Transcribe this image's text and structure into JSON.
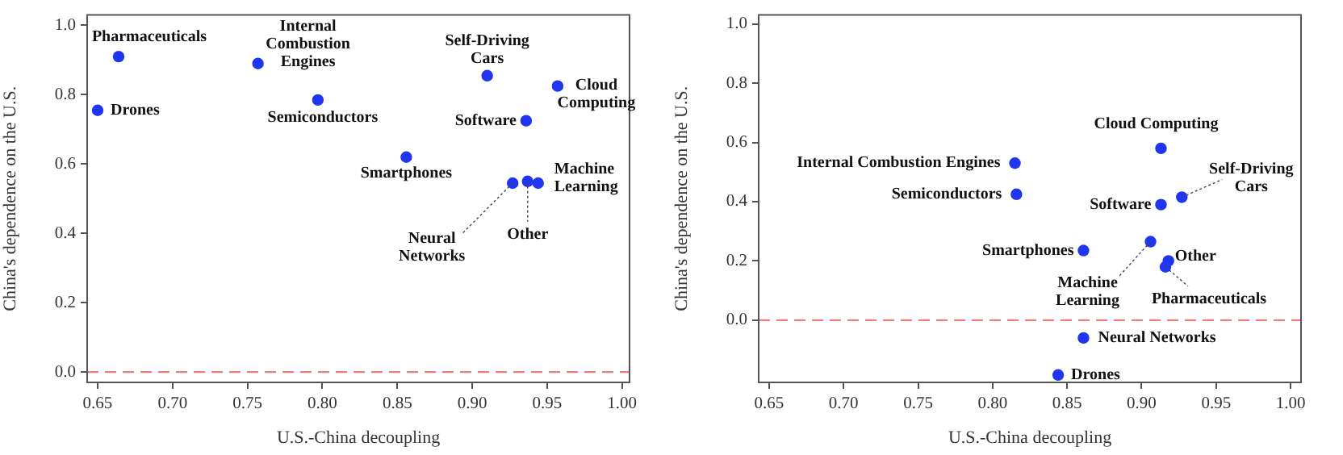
{
  "chart_data": [
    {
      "type": "scatter",
      "xlabel": "U.S.-China decoupling",
      "ylabel": "China's dependence on the U.S.",
      "xlim": [
        0.643,
        1.005
      ],
      "ylim": [
        -0.03,
        1.03
      ],
      "xticks": [
        {
          "value": 0.65,
          "label": "0.65"
        },
        {
          "value": 0.7,
          "label": "0.70"
        },
        {
          "value": 0.75,
          "label": "0.75"
        },
        {
          "value": 0.8,
          "label": "0.80"
        },
        {
          "value": 0.85,
          "label": "0.85"
        },
        {
          "value": 0.9,
          "label": "0.90"
        },
        {
          "value": 0.95,
          "label": "0.95"
        },
        {
          "value": 1.0,
          "label": "1.00"
        }
      ],
      "yticks": [
        {
          "value": 0,
          "label": "0.0"
        },
        {
          "value": 0.2,
          "label": "0.2"
        },
        {
          "value": 0.4,
          "label": "0.4"
        },
        {
          "value": 0.6,
          "label": "0.6"
        },
        {
          "value": 0.8,
          "label": "0.8"
        },
        {
          "value": 1.0,
          "label": "1.0"
        }
      ],
      "grid": false,
      "legend": false,
      "marker": "circle",
      "series": [
        {
          "color": "#1f35f0",
          "x": [
            0.664,
            0.65,
            0.757,
            0.797,
            0.856,
            0.91,
            0.957,
            0.936,
            0.927,
            0.937,
            0.944
          ],
          "values": [
            0.91,
            0.755,
            0.89,
            0.785,
            0.62,
            0.855,
            0.825,
            0.725,
            0.545,
            0.55,
            0.545
          ]
        }
      ],
      "annotations": [
        {
          "text": "Pharmaceuticals",
          "x": 0.664,
          "y": 0.91
        },
        {
          "text": "Drones",
          "x": 0.65,
          "y": 0.755
        },
        {
          "text": "Internal Combustion Engines",
          "x": 0.757,
          "y": 0.89
        },
        {
          "text": "Semiconductors",
          "x": 0.797,
          "y": 0.785
        },
        {
          "text": "Smartphones",
          "x": 0.856,
          "y": 0.62
        },
        {
          "text": "Self-Driving Cars",
          "x": 0.91,
          "y": 0.855
        },
        {
          "text": "Cloud Computing",
          "x": 0.957,
          "y": 0.825
        },
        {
          "text": "Software",
          "x": 0.936,
          "y": 0.725
        },
        {
          "text": "Neural Networks",
          "x": 0.927,
          "y": 0.545
        },
        {
          "text": "Other",
          "x": 0.937,
          "y": 0.55
        },
        {
          "text": "Machine Learning",
          "x": 0.944,
          "y": 0.545
        }
      ],
      "ref_lines": [
        {
          "axis": "y",
          "value": 0,
          "color": "#e8807a",
          "line_style": "dashed"
        }
      ]
    },
    {
      "type": "scatter",
      "xlabel": "U.S.-China decoupling",
      "ylabel": "China's dependence on the U.S.",
      "xlim": [
        0.643,
        1.007
      ],
      "ylim": [
        -0.21,
        1.03
      ],
      "xticks": [
        {
          "value": 0.65,
          "label": "0.65"
        },
        {
          "value": 0.7,
          "label": "0.70"
        },
        {
          "value": 0.75,
          "label": "0.75"
        },
        {
          "value": 0.8,
          "label": "0.80"
        },
        {
          "value": 0.85,
          "label": "0.85"
        },
        {
          "value": 0.9,
          "label": "0.90"
        },
        {
          "value": 0.95,
          "label": "0.95"
        },
        {
          "value": 1.0,
          "label": "1.00"
        }
      ],
      "yticks": [
        {
          "value": 0,
          "label": "0.0"
        },
        {
          "value": 0.2,
          "label": "0.2"
        },
        {
          "value": 0.4,
          "label": "0.4"
        },
        {
          "value": 0.6,
          "label": "0.6"
        },
        {
          "value": 0.8,
          "label": "0.8"
        },
        {
          "value": 1.0,
          "label": "1.0"
        }
      ],
      "grid": false,
      "legend": false,
      "marker": "circle",
      "series": [
        {
          "color": "#1f35f0",
          "x": [
            0.913,
            0.815,
            0.816,
            0.927,
            0.913,
            0.861,
            0.906,
            0.918,
            0.916,
            0.861,
            0.844
          ],
          "values": [
            0.58,
            0.53,
            0.425,
            0.415,
            0.39,
            0.235,
            0.265,
            0.2,
            0.18,
            -0.06,
            -0.185
          ]
        }
      ],
      "annotations": [
        {
          "text": "Cloud Computing",
          "x": 0.913,
          "y": 0.58
        },
        {
          "text": "Internal Combustion Engines",
          "x": 0.815,
          "y": 0.53
        },
        {
          "text": "Semiconductors",
          "x": 0.816,
          "y": 0.425
        },
        {
          "text": "Self-Driving Cars",
          "x": 0.927,
          "y": 0.415
        },
        {
          "text": "Software",
          "x": 0.913,
          "y": 0.39
        },
        {
          "text": "Smartphones",
          "x": 0.861,
          "y": 0.235
        },
        {
          "text": "Machine Learning",
          "x": 0.906,
          "y": 0.265
        },
        {
          "text": "Other",
          "x": 0.918,
          "y": 0.2
        },
        {
          "text": "Pharmaceuticals",
          "x": 0.916,
          "y": 0.18
        },
        {
          "text": "Neural Networks",
          "x": 0.861,
          "y": -0.06
        },
        {
          "text": "Drones",
          "x": 0.844,
          "y": -0.185
        }
      ],
      "ref_lines": [
        {
          "axis": "y",
          "value": 0,
          "color": "#e8807a",
          "line_style": "dashed"
        }
      ]
    }
  ]
}
